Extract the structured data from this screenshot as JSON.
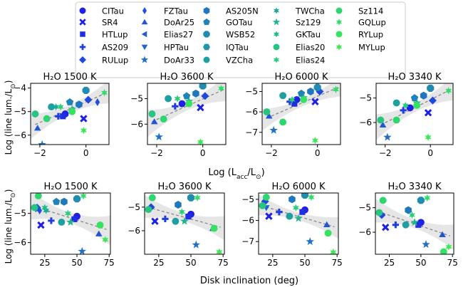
{
  "legend": {
    "entries": [
      {
        "name": "CITau",
        "marker": "circle",
        "color": "#1f1fe6"
      },
      {
        "name": "SR4",
        "marker": "x",
        "color": "#1f1fe6"
      },
      {
        "name": "HTLup",
        "marker": "square",
        "color": "#1f2fe0"
      },
      {
        "name": "AS209",
        "marker": "plus",
        "color": "#1f3ee0"
      },
      {
        "name": "RULup",
        "marker": "diamond",
        "color": "#1f48dc"
      },
      {
        "name": "FZTau",
        "marker": "thin-diamond",
        "color": "#2050d8"
      },
      {
        "name": "DoAr25",
        "marker": "triangle-up",
        "color": "#2056d4"
      },
      {
        "name": "Elias27",
        "marker": "triangle-left",
        "color": "#205ed0"
      },
      {
        "name": "HPTau",
        "marker": "triangle-down",
        "color": "#2066cc"
      },
      {
        "name": "DoAr33",
        "marker": "star",
        "color": "#2070c6"
      },
      {
        "name": "AS205N",
        "marker": "hexagon",
        "color": "#1f78bf"
      },
      {
        "name": "GOTau",
        "marker": "pentagon",
        "color": "#1f82b8"
      },
      {
        "name": "WSB52",
        "marker": "octagon",
        "color": "#1f8cb0"
      },
      {
        "name": "IQTau",
        "marker": "hexagon2",
        "color": "#1f96a8"
      },
      {
        "name": "VZCha",
        "marker": "circle",
        "color": "#1fa0a0"
      },
      {
        "name": "TWCha",
        "marker": "star6",
        "color": "#1faa98"
      },
      {
        "name": "Sz129",
        "marker": "star",
        "color": "#1fb490"
      },
      {
        "name": "GKTau",
        "marker": "star6",
        "color": "#22be88"
      },
      {
        "name": "Elias20",
        "marker": "circle",
        "color": "#26c680"
      },
      {
        "name": "Elias24",
        "marker": "star6",
        "color": "#2ace78"
      },
      {
        "name": "Sz114",
        "marker": "circle",
        "color": "#2ed670"
      },
      {
        "name": "GQLup",
        "marker": "star6",
        "color": "#32dc68"
      },
      {
        "name": "RYLup",
        "marker": "circle",
        "color": "#36e260"
      },
      {
        "name": "MYLup",
        "marker": "star6",
        "color": "#3ae858"
      }
    ]
  },
  "shared_labels": {
    "top_xlabel": "Log (L_acc/L_⊙)",
    "bottom_xlabel": "Disk inclination (deg)",
    "ylabel": "Log (line lum./L_⊙)"
  },
  "chart_data": [
    {
      "type": "scatter",
      "row": "accretion",
      "title": "H₂O 1500 K",
      "xlim": [
        -2.4,
        1.0
      ],
      "ylim": [
        -6.4,
        -3.8
      ],
      "xticks": [
        -2,
        0
      ],
      "yticks": [
        -6,
        -5,
        -4
      ],
      "fit": {
        "x0": -2.2,
        "y0": -5.55,
        "x1": 0.9,
        "y1": -4.2
      },
      "points": [
        {
          "src": 0,
          "x": -0.9,
          "y": -5.1
        },
        {
          "src": 1,
          "x": -0.1,
          "y": -5.3
        },
        {
          "src": 2,
          "x": -1.0,
          "y": -5.2
        },
        {
          "src": 3,
          "x": -1.2,
          "y": -5.2
        },
        {
          "src": 4,
          "x": 0.1,
          "y": -4.5
        },
        {
          "src": 5,
          "x": 0.5,
          "y": -4.6
        },
        {
          "src": 6,
          "x": -2.1,
          "y": -5.7
        },
        {
          "src": 9,
          "x": -1.9,
          "y": -6.4
        },
        {
          "src": 10,
          "x": -0.3,
          "y": -4.7
        },
        {
          "src": 11,
          "x": -0.7,
          "y": -4.6
        },
        {
          "src": 12,
          "x": 0.0,
          "y": -4.1
        },
        {
          "src": 14,
          "x": -1.5,
          "y": -4.8
        },
        {
          "src": 15,
          "x": -1.3,
          "y": -4.8
        },
        {
          "src": 16,
          "x": -0.6,
          "y": -4.9
        },
        {
          "src": 18,
          "x": -2.2,
          "y": -5.1
        },
        {
          "src": 19,
          "x": -1.1,
          "y": -4.8
        },
        {
          "src": 20,
          "x": -1.7,
          "y": -5.3
        },
        {
          "src": 21,
          "x": 0.8,
          "y": -4.2
        },
        {
          "src": 22,
          "x": -0.6,
          "y": -5.0
        },
        {
          "src": 23,
          "x": -0.1,
          "y": -5.8
        }
      ]
    },
    {
      "type": "scatter",
      "row": "accretion",
      "title": "H₂O 3600 K",
      "xlim": [
        -2.4,
        1.0
      ],
      "ylim": [
        -6.8,
        -4.4
      ],
      "xticks": [
        -2,
        0
      ],
      "yticks": [
        -6,
        -5
      ],
      "fit": {
        "x0": -2.2,
        "y0": -5.9,
        "x1": 0.9,
        "y1": -4.65
      },
      "points": [
        {
          "src": 0,
          "x": -0.9,
          "y": -5.2
        },
        {
          "src": 1,
          "x": -0.1,
          "y": -5.35
        },
        {
          "src": 3,
          "x": -1.2,
          "y": -5.3
        },
        {
          "src": 4,
          "x": 0.1,
          "y": -4.9
        },
        {
          "src": 6,
          "x": -2.1,
          "y": -5.9
        },
        {
          "src": 9,
          "x": -1.9,
          "y": -6.5
        },
        {
          "src": 10,
          "x": -0.3,
          "y": -4.8
        },
        {
          "src": 11,
          "x": -0.7,
          "y": -4.9
        },
        {
          "src": 12,
          "x": 0.0,
          "y": -4.5
        },
        {
          "src": 14,
          "x": -1.5,
          "y": -5.0
        },
        {
          "src": 16,
          "x": -0.6,
          "y": -5.1
        },
        {
          "src": 18,
          "x": -2.2,
          "y": -5.6
        },
        {
          "src": 19,
          "x": -1.1,
          "y": -5.0
        },
        {
          "src": 20,
          "x": -1.7,
          "y": -5.8
        },
        {
          "src": 21,
          "x": 0.8,
          "y": -4.6
        },
        {
          "src": 22,
          "x": -0.6,
          "y": -5.2
        },
        {
          "src": 23,
          "x": -0.1,
          "y": -6.7
        }
      ]
    },
    {
      "type": "scatter",
      "row": "accretion",
      "title": "H₂O 6000 K",
      "xlim": [
        -2.4,
        1.0
      ],
      "ylim": [
        -7.6,
        -4.6
      ],
      "xticks": [
        -2,
        0
      ],
      "yticks": [
        -7,
        -6,
        -5
      ],
      "fit": {
        "x0": -2.2,
        "y0": -6.3,
        "x1": 0.9,
        "y1": -4.8
      },
      "points": [
        {
          "src": 0,
          "x": -0.9,
          "y": -5.4
        },
        {
          "src": 1,
          "x": -0.1,
          "y": -5.5
        },
        {
          "src": 2,
          "x": -1.0,
          "y": -5.6
        },
        {
          "src": 3,
          "x": -1.2,
          "y": -5.5
        },
        {
          "src": 4,
          "x": 0.1,
          "y": -5.0
        },
        {
          "src": 6,
          "x": -2.1,
          "y": -6.2
        },
        {
          "src": 9,
          "x": -1.9,
          "y": -6.9
        },
        {
          "src": 10,
          "x": -0.3,
          "y": -5.0
        },
        {
          "src": 11,
          "x": -0.7,
          "y": -5.1
        },
        {
          "src": 12,
          "x": 0.0,
          "y": -4.8
        },
        {
          "src": 14,
          "x": -1.5,
          "y": -5.2
        },
        {
          "src": 16,
          "x": -0.6,
          "y": -5.3
        },
        {
          "src": 18,
          "x": -2.2,
          "y": -6.0
        },
        {
          "src": 19,
          "x": -1.1,
          "y": -5.4
        },
        {
          "src": 20,
          "x": -1.5,
          "y": -6.5
        },
        {
          "src": 21,
          "x": 0.8,
          "y": -4.9
        },
        {
          "src": 22,
          "x": -0.6,
          "y": -5.4
        },
        {
          "src": 23,
          "x": -0.1,
          "y": -7.4
        }
      ]
    },
    {
      "type": "scatter",
      "row": "accretion",
      "title": "H₂O 3340 K",
      "xlim": [
        -2.4,
        1.0
      ],
      "ylim": [
        -6.9,
        -4.4
      ],
      "xticks": [
        -2,
        0
      ],
      "yticks": [
        -6,
        -5
      ],
      "fit": {
        "x0": -2.2,
        "y0": -6.1,
        "x1": 0.9,
        "y1": -4.65
      },
      "points": [
        {
          "src": 0,
          "x": -0.9,
          "y": -5.4
        },
        {
          "src": 1,
          "x": -0.1,
          "y": -5.6
        },
        {
          "src": 3,
          "x": -1.2,
          "y": -5.5
        },
        {
          "src": 4,
          "x": 0.1,
          "y": -5.1
        },
        {
          "src": 6,
          "x": -2.1,
          "y": -6.1
        },
        {
          "src": 9,
          "x": -1.9,
          "y": -6.6
        },
        {
          "src": 10,
          "x": -0.3,
          "y": -4.9
        },
        {
          "src": 11,
          "x": -0.7,
          "y": -5.0
        },
        {
          "src": 12,
          "x": 0.0,
          "y": -4.6
        },
        {
          "src": 14,
          "x": -1.5,
          "y": -5.2
        },
        {
          "src": 16,
          "x": -0.6,
          "y": -5.2
        },
        {
          "src": 18,
          "x": -2.2,
          "y": -5.9
        },
        {
          "src": 19,
          "x": -1.1,
          "y": -5.3
        },
        {
          "src": 20,
          "x": -1.5,
          "y": -5.9
        },
        {
          "src": 21,
          "x": 0.8,
          "y": -4.7
        },
        {
          "src": 22,
          "x": -0.6,
          "y": -5.3
        },
        {
          "src": 23,
          "x": -0.1,
          "y": -6.6
        }
      ]
    },
    {
      "type": "scatter",
      "row": "inclination",
      "title": "H₂O 1500 K",
      "xlim": [
        14,
        76
      ],
      "ylim": [
        -6.4,
        -4.3
      ],
      "xticks": [
        25,
        50,
        75
      ],
      "yticks": [
        -6,
        -5
      ],
      "fit": {
        "x0": 16,
        "y0": -4.75,
        "x1": 73,
        "y1": -5.55
      },
      "points": [
        {
          "src": 0,
          "x": 50,
          "y": -5.1
        },
        {
          "src": 1,
          "x": 22,
          "y": -5.4
        },
        {
          "src": 2,
          "x": 48,
          "y": -5.2
        },
        {
          "src": 3,
          "x": 30,
          "y": -5.25
        },
        {
          "src": 4,
          "x": 19,
          "y": -4.8
        },
        {
          "src": 5,
          "x": 21,
          "y": -4.9
        },
        {
          "src": 6,
          "x": 67,
          "y": -5.7
        },
        {
          "src": 8,
          "x": 18,
          "y": -4.85
        },
        {
          "src": 9,
          "x": 54,
          "y": -6.3
        },
        {
          "src": 10,
          "x": 40,
          "y": -4.6
        },
        {
          "src": 11,
          "x": 34,
          "y": -4.6
        },
        {
          "src": 12,
          "x": 50,
          "y": -4.5
        },
        {
          "src": 14,
          "x": 38,
          "y": -5.3
        },
        {
          "src": 15,
          "x": 26,
          "y": -4.9
        },
        {
          "src": 16,
          "x": 45,
          "y": -5.3
        },
        {
          "src": 17,
          "x": 25,
          "y": -4.8
        },
        {
          "src": 18,
          "x": 17,
          "y": -4.8
        },
        {
          "src": 19,
          "x": 43,
          "y": -5.0
        },
        {
          "src": 20,
          "x": 20,
          "y": -4.4
        },
        {
          "src": 21,
          "x": 55,
          "y": -4.4
        },
        {
          "src": 22,
          "x": 68,
          "y": -5.4
        },
        {
          "src": 23,
          "x": 72,
          "y": -5.9
        }
      ]
    },
    {
      "type": "scatter",
      "row": "inclination",
      "title": "H₂O 3600 K",
      "xlim": [
        14,
        76
      ],
      "ylim": [
        -7.0,
        -4.4
      ],
      "xticks": [
        25,
        50,
        75
      ],
      "yticks": [
        -6,
        -5
      ],
      "fit": {
        "x0": 16,
        "y0": -5.0,
        "x1": 73,
        "y1": -5.85
      },
      "points": [
        {
          "src": 0,
          "x": 50,
          "y": -5.3
        },
        {
          "src": 1,
          "x": 22,
          "y": -5.6
        },
        {
          "src": 2,
          "x": 48,
          "y": -5.4
        },
        {
          "src": 3,
          "x": 30,
          "y": -5.5
        },
        {
          "src": 4,
          "x": 19,
          "y": -5.0
        },
        {
          "src": 6,
          "x": 67,
          "y": -5.9
        },
        {
          "src": 9,
          "x": 54,
          "y": -6.6
        },
        {
          "src": 10,
          "x": 40,
          "y": -4.9
        },
        {
          "src": 12,
          "x": 50,
          "y": -4.6
        },
        {
          "src": 14,
          "x": 38,
          "y": -5.6
        },
        {
          "src": 16,
          "x": 45,
          "y": -5.6
        },
        {
          "src": 18,
          "x": 17,
          "y": -5.1
        },
        {
          "src": 19,
          "x": 43,
          "y": -5.2
        },
        {
          "src": 20,
          "x": 20,
          "y": -4.6
        },
        {
          "src": 21,
          "x": 55,
          "y": -4.6
        },
        {
          "src": 22,
          "x": 68,
          "y": -5.9
        },
        {
          "src": 23,
          "x": 72,
          "y": -6.9
        }
      ]
    },
    {
      "type": "scatter",
      "row": "inclination",
      "title": "H₂O 6000 K",
      "xlim": [
        14,
        76
      ],
      "ylim": [
        -7.6,
        -4.7
      ],
      "xticks": [
        25,
        50,
        75
      ],
      "yticks": [
        -7,
        -6,
        -5
      ],
      "fit": {
        "x0": 16,
        "y0": -5.3,
        "x1": 73,
        "y1": -6.3
      },
      "points": [
        {
          "src": 0,
          "x": 50,
          "y": -5.5
        },
        {
          "src": 1,
          "x": 22,
          "y": -5.8
        },
        {
          "src": 2,
          "x": 48,
          "y": -5.6
        },
        {
          "src": 3,
          "x": 30,
          "y": -5.6
        },
        {
          "src": 4,
          "x": 19,
          "y": -5.1
        },
        {
          "src": 6,
          "x": 67,
          "y": -6.2
        },
        {
          "src": 8,
          "x": 20,
          "y": -5.4
        },
        {
          "src": 9,
          "x": 54,
          "y": -7.0
        },
        {
          "src": 10,
          "x": 40,
          "y": -5.0
        },
        {
          "src": 12,
          "x": 50,
          "y": -4.8
        },
        {
          "src": 14,
          "x": 38,
          "y": -5.8
        },
        {
          "src": 16,
          "x": 45,
          "y": -5.9
        },
        {
          "src": 18,
          "x": 17,
          "y": -5.3
        },
        {
          "src": 19,
          "x": 43,
          "y": -5.4
        },
        {
          "src": 20,
          "x": 20,
          "y": -4.9
        },
        {
          "src": 21,
          "x": 55,
          "y": -4.9
        },
        {
          "src": 22,
          "x": 68,
          "y": -6.6
        },
        {
          "src": 23,
          "x": 72,
          "y": -7.5
        }
      ]
    },
    {
      "type": "scatter",
      "row": "inclination",
      "title": "H₂O 3340 K",
      "xlim": [
        14,
        76
      ],
      "ylim": [
        -6.9,
        -4.4
      ],
      "xticks": [
        25,
        50,
        75
      ],
      "yticks": [
        -6,
        -5
      ],
      "fit": {
        "x0": 16,
        "y0": -5.15,
        "x1": 73,
        "y1": -6.15
      },
      "points": [
        {
          "src": 0,
          "x": 50,
          "y": -5.6
        },
        {
          "src": 1,
          "x": 22,
          "y": -5.8
        },
        {
          "src": 2,
          "x": 48,
          "y": -5.7
        },
        {
          "src": 3,
          "x": 30,
          "y": -5.7
        },
        {
          "src": 4,
          "x": 19,
          "y": -5.3
        },
        {
          "src": 6,
          "x": 67,
          "y": -6.1
        },
        {
          "src": 9,
          "x": 54,
          "y": -6.5
        },
        {
          "src": 10,
          "x": 40,
          "y": -5.1
        },
        {
          "src": 12,
          "x": 50,
          "y": -4.7
        },
        {
          "src": 14,
          "x": 38,
          "y": -5.7
        },
        {
          "src": 16,
          "x": 45,
          "y": -5.6
        },
        {
          "src": 18,
          "x": 17,
          "y": -5.2
        },
        {
          "src": 19,
          "x": 43,
          "y": -5.3
        },
        {
          "src": 20,
          "x": 20,
          "y": -4.7
        },
        {
          "src": 21,
          "x": 55,
          "y": -4.6
        },
        {
          "src": 22,
          "x": 68,
          "y": -6.8
        },
        {
          "src": 23,
          "x": 72,
          "y": -6.6
        }
      ]
    }
  ]
}
